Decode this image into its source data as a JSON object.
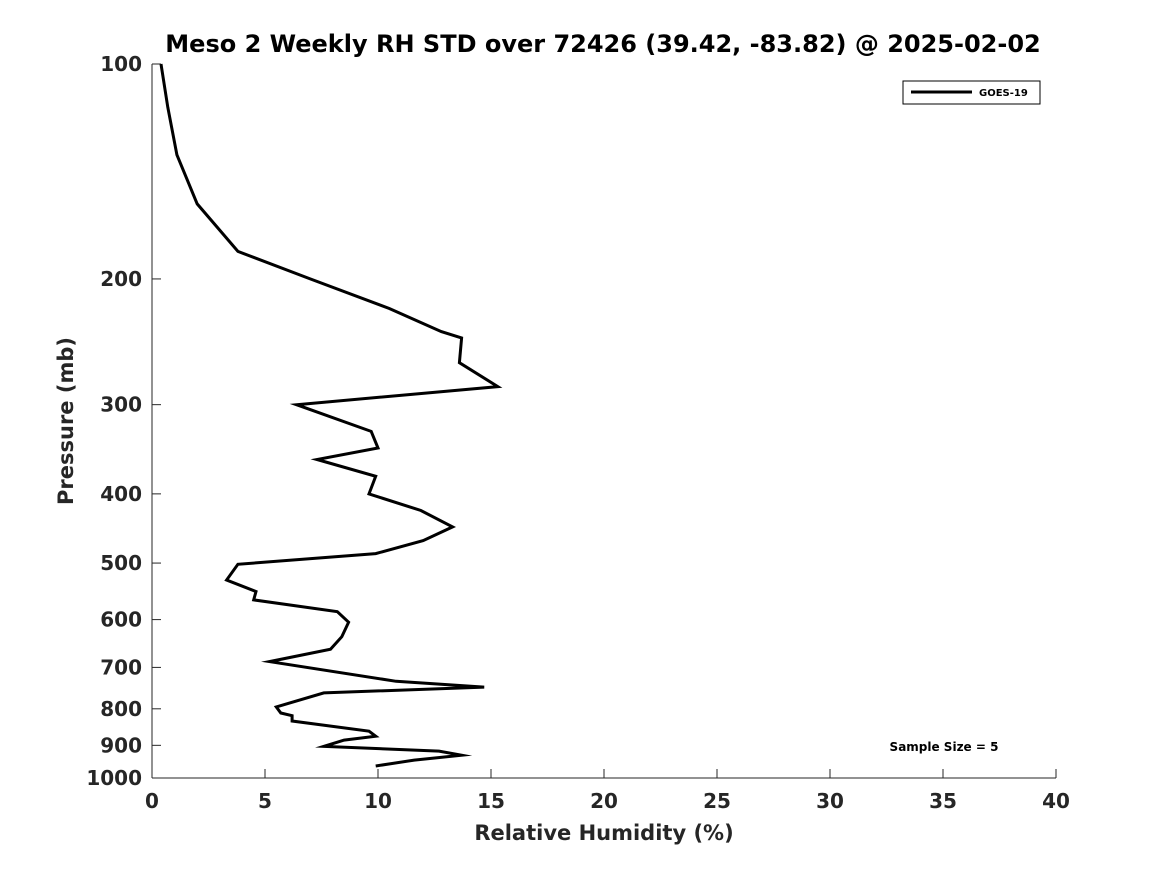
{
  "chart_data": {
    "type": "line",
    "title": "Meso 2 Weekly RH STD over 72426 (39.42, -83.82) @ 2025-02-02",
    "xlabel": "Relative Humidity (%)",
    "ylabel": "Pressure (mb)",
    "xlim": [
      0,
      40
    ],
    "ylim": [
      100,
      1000
    ],
    "yscale": "log",
    "x_ticks": [
      0,
      5,
      10,
      15,
      20,
      25,
      30,
      35,
      40
    ],
    "x_tick_labels": [
      "0",
      "5",
      "10",
      "15",
      "20",
      "25",
      "30",
      "35",
      "40"
    ],
    "y_ticks": [
      100,
      200,
      300,
      400,
      500,
      600,
      700,
      800,
      900,
      1000
    ],
    "y_tick_labels": [
      "100",
      "200",
      "300",
      "400",
      "500",
      "600",
      "700",
      "800",
      "900",
      "1000"
    ],
    "grid": false,
    "legend_position": "top-right",
    "annotation": "Sample Size = 5",
    "series": [
      {
        "name": "GOES-19",
        "color": "#000000",
        "points": [
          [
            0.4,
            100
          ],
          [
            0.7,
            115
          ],
          [
            1.1,
            134
          ],
          [
            2.0,
            157
          ],
          [
            3.8,
            183
          ],
          [
            7.0,
            200
          ],
          [
            10.5,
            220
          ],
          [
            12.8,
            237
          ],
          [
            13.7,
            242
          ],
          [
            13.6,
            262
          ],
          [
            15.3,
            283
          ],
          [
            6.4,
            300
          ],
          [
            9.7,
            327
          ],
          [
            10.0,
            345
          ],
          [
            7.3,
            358
          ],
          [
            9.9,
            378
          ],
          [
            9.6,
            400
          ],
          [
            11.9,
            422
          ],
          [
            13.3,
            445
          ],
          [
            12.0,
            465
          ],
          [
            9.9,
            485
          ],
          [
            3.8,
            502
          ],
          [
            3.3,
            528
          ],
          [
            4.6,
            548
          ],
          [
            4.5,
            563
          ],
          [
            8.2,
            585
          ],
          [
            8.7,
            605
          ],
          [
            8.4,
            634
          ],
          [
            7.9,
            660
          ],
          [
            5.2,
            687
          ],
          [
            10.8,
            732
          ],
          [
            14.7,
            746
          ],
          [
            7.6,
            760
          ],
          [
            5.5,
            795
          ],
          [
            5.7,
            811
          ],
          [
            6.2,
            818
          ],
          [
            6.2,
            832
          ],
          [
            9.6,
            860
          ],
          [
            9.9,
            874
          ],
          [
            8.5,
            885
          ],
          [
            7.6,
            903
          ],
          [
            12.7,
            917
          ],
          [
            13.7,
            929
          ],
          [
            11.6,
            944
          ],
          [
            9.9,
            962
          ]
        ]
      }
    ]
  }
}
